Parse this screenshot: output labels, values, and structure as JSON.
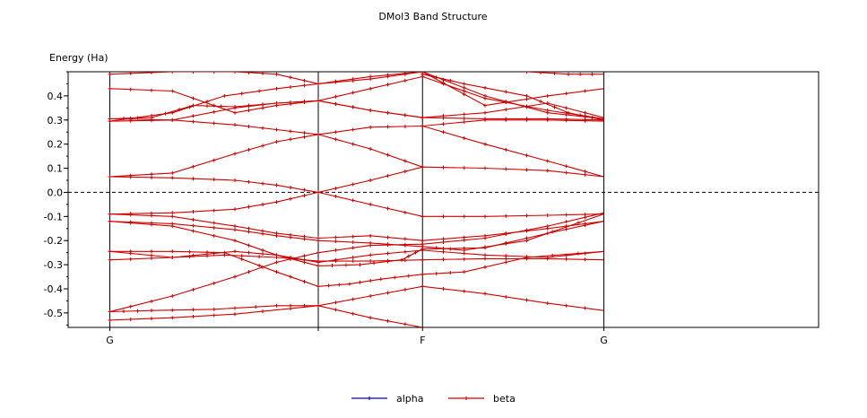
{
  "chart_data": {
    "type": "line",
    "title": "DMol3 Band Structure",
    "ylabel": "Energy (Ha)",
    "xlabel": "",
    "ylim": [
      -0.56,
      0.5
    ],
    "yticks": [
      {
        "v": 0.4,
        "label": "0.4"
      },
      {
        "v": 0.3,
        "label": "0.3"
      },
      {
        "v": 0.2,
        "label": "0.2"
      },
      {
        "v": 0.1,
        "label": "0.1"
      },
      {
        "v": 0.0,
        "label": "0.0"
      },
      {
        "v": -0.1,
        "label": "-0.1"
      },
      {
        "v": -0.2,
        "label": "-0.2"
      },
      {
        "v": -0.3,
        "label": "-0.3"
      },
      {
        "v": -0.4,
        "label": "-0.4"
      },
      {
        "v": -0.5,
        "label": "-0.5"
      }
    ],
    "x_range": [
      -0.2,
      3.4
    ],
    "kpath": [
      {
        "x": 0,
        "label": "G"
      },
      {
        "x": 1,
        "label": ""
      },
      {
        "x": 1.5,
        "label": "F"
      },
      {
        "x": 2.37,
        "label": "G"
      }
    ],
    "fermi_level": 0.0,
    "legend_placement": "bottom-center",
    "series": [
      {
        "name": "alpha",
        "color": "#0000cc",
        "bands": []
      },
      {
        "name": "beta",
        "color": "#cc0000",
        "bands": [
          [
            [
              0,
              -0.53
            ],
            [
              0.3,
              -0.52
            ],
            [
              0.6,
              -0.505
            ],
            [
              1.0,
              -0.47
            ],
            [
              1.25,
              -0.43
            ],
            [
              1.5,
              -0.39
            ],
            [
              1.8,
              -0.42
            ],
            [
              2.1,
              -0.46
            ],
            [
              2.37,
              -0.49
            ]
          ],
          [
            [
              0,
              -0.495
            ],
            [
              0.3,
              -0.43
            ],
            [
              0.6,
              -0.35
            ],
            [
              0.8,
              -0.29
            ],
            [
              1.0,
              -0.25
            ],
            [
              1.25,
              -0.22
            ],
            [
              1.5,
              -0.215
            ],
            [
              1.8,
              -0.19
            ],
            [
              2.1,
              -0.14
            ],
            [
              2.37,
              -0.085
            ]
          ],
          [
            [
              0,
              -0.495
            ],
            [
              0.2,
              -0.49
            ],
            [
              0.5,
              -0.485
            ],
            [
              0.8,
              -0.47
            ],
            [
              1.0,
              -0.47
            ],
            [
              1.25,
              -0.52
            ],
            [
              1.5,
              -0.56
            ]
          ],
          [
            [
              0,
              -0.28
            ],
            [
              0.3,
              -0.27
            ],
            [
              0.55,
              -0.26
            ],
            [
              0.8,
              -0.27
            ],
            [
              1.0,
              -0.285
            ],
            [
              1.25,
              -0.285
            ],
            [
              1.5,
              -0.28
            ],
            [
              1.8,
              -0.275
            ],
            [
              2.1,
              -0.275
            ],
            [
              2.37,
              -0.28
            ]
          ],
          [
            [
              0,
              -0.245
            ],
            [
              0.3,
              -0.245
            ],
            [
              0.55,
              -0.25
            ],
            [
              0.8,
              -0.33
            ],
            [
              1.0,
              -0.39
            ],
            [
              1.15,
              -0.38
            ],
            [
              1.3,
              -0.36
            ],
            [
              1.5,
              -0.34
            ],
            [
              1.7,
              -0.33
            ],
            [
              2.0,
              -0.27
            ],
            [
              2.37,
              -0.245
            ]
          ],
          [
            [
              0,
              -0.245
            ],
            [
              0.3,
              -0.27
            ],
            [
              0.6,
              -0.245
            ],
            [
              0.8,
              -0.26
            ],
            [
              1.0,
              -0.29
            ],
            [
              1.25,
              -0.26
            ],
            [
              1.5,
              -0.24
            ],
            [
              1.8,
              -0.26
            ],
            [
              2.1,
              -0.27
            ],
            [
              2.37,
              -0.245
            ]
          ],
          [
            [
              0,
              -0.12
            ],
            [
              0.3,
              -0.14
            ],
            [
              0.6,
              -0.2
            ],
            [
              0.8,
              -0.26
            ],
            [
              1.0,
              -0.305
            ],
            [
              1.2,
              -0.3
            ],
            [
              1.4,
              -0.28
            ],
            [
              1.5,
              -0.235
            ],
            [
              1.8,
              -0.23
            ],
            [
              2.1,
              -0.17
            ],
            [
              2.37,
              -0.12
            ]
          ],
          [
            [
              0,
              -0.12
            ],
            [
              0.3,
              -0.13
            ],
            [
              0.6,
              -0.155
            ],
            [
              0.8,
              -0.18
            ],
            [
              1.0,
              -0.2
            ],
            [
              1.25,
              -0.21
            ],
            [
              1.5,
              -0.225
            ],
            [
              1.7,
              -0.24
            ],
            [
              2.0,
              -0.2
            ],
            [
              2.37,
              -0.09
            ]
          ],
          [
            [
              0,
              -0.09
            ],
            [
              0.3,
              -0.1
            ],
            [
              0.6,
              -0.14
            ],
            [
              0.8,
              -0.17
            ],
            [
              1.0,
              -0.19
            ],
            [
              1.25,
              -0.18
            ],
            [
              1.5,
              -0.2
            ],
            [
              1.8,
              -0.18
            ],
            [
              2.1,
              -0.15
            ],
            [
              2.37,
              -0.12
            ]
          ],
          [
            [
              0,
              -0.09
            ],
            [
              0.3,
              -0.085
            ],
            [
              0.6,
              -0.07
            ],
            [
              0.8,
              -0.04
            ],
            [
              1.0,
              0.0
            ],
            [
              1.25,
              -0.05
            ],
            [
              1.5,
              -0.1
            ],
            [
              1.8,
              -0.1
            ],
            [
              2.1,
              -0.095
            ],
            [
              2.37,
              -0.09
            ]
          ],
          [
            [
              0,
              0.065
            ],
            [
              0.3,
              0.06
            ],
            [
              0.6,
              0.05
            ],
            [
              0.8,
              0.03
            ],
            [
              1.0,
              0.0
            ],
            [
              1.25,
              0.05
            ],
            [
              1.5,
              0.105
            ],
            [
              1.8,
              0.1
            ],
            [
              2.1,
              0.09
            ],
            [
              2.37,
              0.065
            ]
          ],
          [
            [
              0,
              0.065
            ],
            [
              0.3,
              0.08
            ],
            [
              0.6,
              0.16
            ],
            [
              0.8,
              0.21
            ],
            [
              1.0,
              0.24
            ],
            [
              1.25,
              0.27
            ],
            [
              1.5,
              0.275
            ],
            [
              1.8,
              0.2
            ],
            [
              2.1,
              0.13
            ],
            [
              2.37,
              0.065
            ]
          ],
          [
            [
              0,
              0.295
            ],
            [
              0.3,
              0.3
            ],
            [
              0.6,
              0.28
            ],
            [
              0.8,
              0.26
            ],
            [
              1.0,
              0.24
            ],
            [
              1.25,
              0.18
            ],
            [
              1.5,
              0.105
            ]
          ],
          [
            [
              1.5,
              0.275
            ],
            [
              1.8,
              0.3
            ],
            [
              2.1,
              0.3
            ],
            [
              2.37,
              0.295
            ]
          ],
          [
            [
              0,
              0.295
            ],
            [
              0.3,
              0.33
            ],
            [
              0.55,
              0.4
            ],
            [
              0.8,
              0.43
            ],
            [
              1.0,
              0.45
            ],
            [
              1.25,
              0.47
            ],
            [
              1.5,
              0.5
            ],
            [
              1.8,
              0.4
            ],
            [
              2.1,
              0.33
            ],
            [
              2.37,
              0.305
            ]
          ],
          [
            [
              0,
              0.305
            ],
            [
              0.2,
              0.31
            ],
            [
              0.4,
              0.36
            ],
            [
              0.6,
              0.355
            ],
            [
              0.8,
              0.37
            ],
            [
              1.0,
              0.38
            ],
            [
              1.25,
              0.43
            ],
            [
              1.5,
              0.48
            ],
            [
              1.8,
              0.39
            ],
            [
              2.1,
              0.34
            ],
            [
              2.37,
              0.305
            ]
          ],
          [
            [
              0,
              0.305
            ],
            [
              0.3,
              0.3
            ],
            [
              0.6,
              0.35
            ],
            [
              0.8,
              0.37
            ],
            [
              1.0,
              0.38
            ],
            [
              1.25,
              0.34
            ],
            [
              1.5,
              0.31
            ],
            [
              1.8,
              0.305
            ],
            [
              2.1,
              0.305
            ],
            [
              2.37,
              0.3
            ]
          ],
          [
            [
              0,
              0.43
            ],
            [
              0.3,
              0.42
            ],
            [
              0.6,
              0.33
            ],
            [
              0.8,
              0.36
            ],
            [
              1.0,
              0.38
            ],
            [
              1.25,
              0.34
            ],
            [
              1.5,
              0.31
            ],
            [
              1.8,
              0.33
            ],
            [
              2.1,
              0.37
            ],
            [
              2.37,
              0.31
            ]
          ],
          [
            [
              0,
              0.49
            ],
            [
              0.3,
              0.5
            ],
            [
              0.6,
              0.5
            ],
            [
              0.8,
              0.49
            ],
            [
              1.0,
              0.45
            ],
            [
              1.25,
              0.48
            ],
            [
              1.5,
              0.5
            ],
            [
              1.8,
              0.36
            ],
            [
              2.1,
              0.4
            ],
            [
              2.37,
              0.43
            ]
          ],
          [
            [
              1.5,
              0.49
            ],
            [
              1.7,
              0.45
            ],
            [
              2.0,
              0.4
            ],
            [
              2.2,
              0.33
            ],
            [
              2.37,
              0.3
            ]
          ],
          [
            [
              2.0,
              0.5
            ],
            [
              2.2,
              0.49
            ],
            [
              2.37,
              0.49
            ]
          ]
        ]
      }
    ]
  }
}
